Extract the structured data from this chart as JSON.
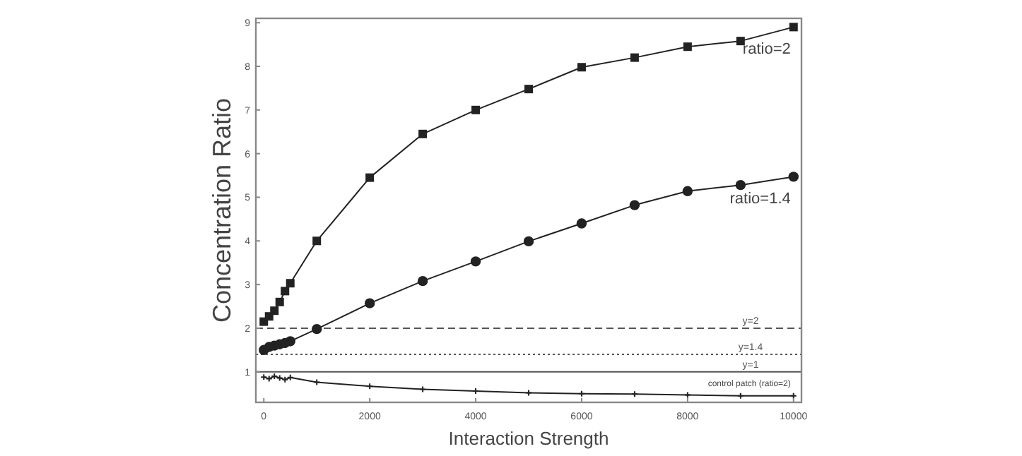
{
  "chart_data": {
    "type": "line",
    "xlabel": "Interaction Strength",
    "ylabel": "Concentration Ratio",
    "xlim": [
      -150,
      10150
    ],
    "ylim": [
      0.3,
      9.1
    ],
    "xticks": [
      0,
      2000,
      4000,
      6000,
      8000,
      10000
    ],
    "yticks": [
      1,
      2,
      3,
      4,
      5,
      6,
      7,
      8,
      9
    ],
    "x": [
      0,
      100,
      200,
      300,
      400,
      500,
      1000,
      2000,
      3000,
      4000,
      5000,
      6000,
      7000,
      8000,
      9000,
      10000
    ],
    "grid": false,
    "series": [
      {
        "name": "ratio=2",
        "color": "#222222",
        "marker": "square",
        "values": [
          2.15,
          2.27,
          2.4,
          2.6,
          2.85,
          3.03,
          4.0,
          5.45,
          6.45,
          7.0,
          7.48,
          7.98,
          8.2,
          8.45,
          8.58,
          8.9
        ]
      },
      {
        "name": "ratio=1.4",
        "color": "#222222",
        "marker": "circle",
        "values": [
          1.5,
          1.57,
          1.6,
          1.63,
          1.66,
          1.7,
          1.98,
          2.57,
          3.08,
          3.53,
          3.99,
          4.4,
          4.82,
          5.14,
          5.28,
          5.47
        ]
      },
      {
        "name": "control patch (ratio=2)",
        "color": "#222222",
        "marker": "cross",
        "values": [
          0.88,
          0.84,
          0.9,
          0.86,
          0.82,
          0.87,
          0.76,
          0.67,
          0.6,
          0.56,
          0.52,
          0.5,
          0.49,
          0.47,
          0.45,
          0.45
        ]
      }
    ],
    "ref_lines": [
      {
        "axis": "y",
        "value": 2,
        "label": "y=2",
        "line_style": "dashed",
        "color": "#555555"
      },
      {
        "axis": "y",
        "value": 1.4,
        "label": "y=1.4",
        "line_style": "dotted",
        "color": "#555555"
      },
      {
        "axis": "y",
        "value": 1,
        "label": "y=1",
        "line_style": "solid",
        "color": "#555555"
      }
    ]
  }
}
